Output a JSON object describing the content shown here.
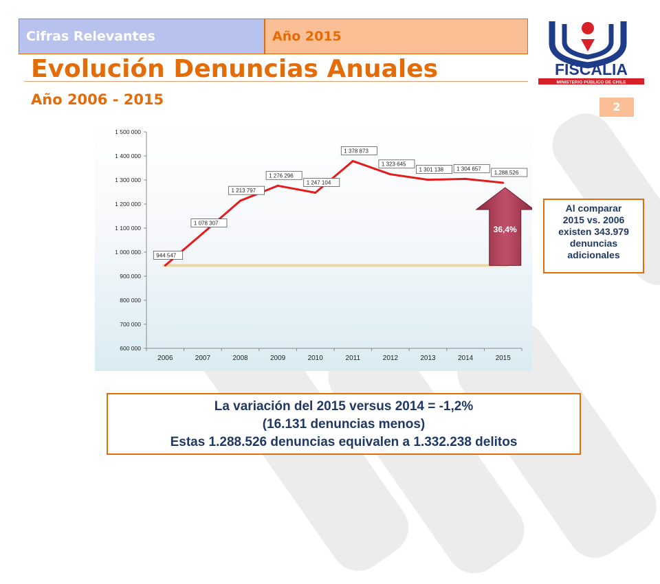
{
  "header": {
    "tab_left": "Cifras Relevantes",
    "tab_right": "Año 2015",
    "title": "Evolución Denuncias Anuales",
    "subtitle": "Año 2006 - 2015",
    "page_number": "2"
  },
  "logo": {
    "name": "FISCALIA",
    "tagline": "MINISTERIO PÚBLICO DE CHILE",
    "colors": {
      "blue": "#1f3c88",
      "red": "#d72027"
    }
  },
  "chart_data": {
    "type": "line",
    "title": "",
    "xlabel": "",
    "ylabel": "",
    "categories": [
      "2006",
      "2007",
      "2008",
      "2009",
      "2010",
      "2011",
      "2012",
      "2013",
      "2014",
      "2015"
    ],
    "values": [
      944547,
      1078307,
      1213797,
      1276296,
      1247104,
      1378873,
      1323645,
      1301138,
      1304657,
      1288526
    ],
    "data_labels": [
      "944 547",
      "1 078 307",
      "1 213 797",
      "1 276 296",
      "1 247 104",
      "1 378 873",
      "1 323 645",
      "1 301 138",
      "1 304 657",
      "1.288.526"
    ],
    "ylim": [
      600000,
      1500000
    ],
    "yticks": [
      600000,
      700000,
      800000,
      900000,
      1000000,
      1100000,
      1200000,
      1300000,
      1400000,
      1500000
    ],
    "ytick_labels": [
      "600 000",
      "700 000",
      "800 000",
      "900 000",
      "1 000 000",
      "1 100 000",
      "1 200 000",
      "1 300 000",
      "1 400 000",
      "1 500 000"
    ],
    "baseline_value": 944547,
    "grid": false,
    "line_color": "#e31b1b",
    "baseline_color": "#f0d9a0",
    "arrow_label": "36,4%",
    "arrow_color": "#c0506a"
  },
  "callout": {
    "lines": [
      "Al comparar",
      "2015 vs. 2006",
      "existen 343.979",
      "denuncias",
      "adicionales"
    ]
  },
  "summary": {
    "lines": [
      "La variación del 2015 versus 2014 = -1,2%",
      "(16.131 denuncias menos)",
      "Estas 1.288.526 denuncias equivalen a 1.332.238 delitos"
    ]
  }
}
